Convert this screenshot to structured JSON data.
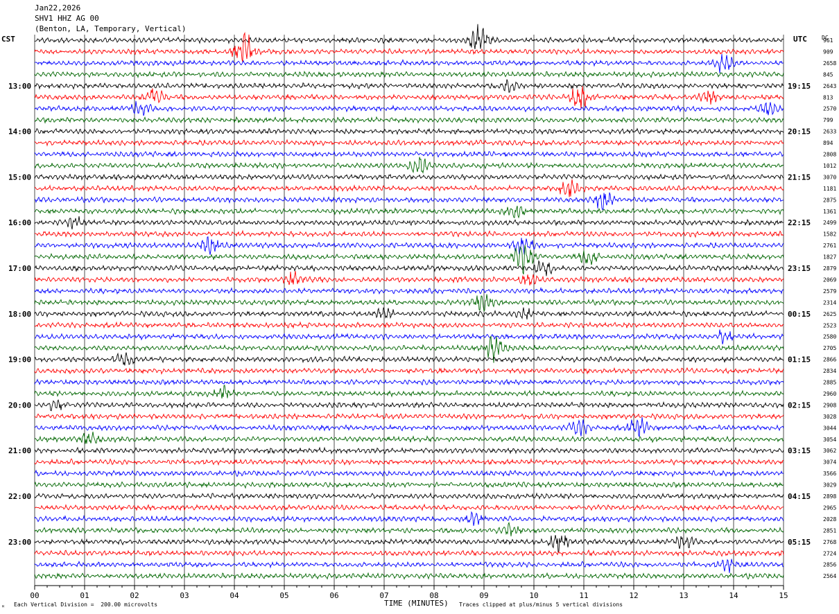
{
  "header": {
    "date": "Jan22,2026",
    "station": "SHV1 HHZ AG 00",
    "location": "(Benton, LA, Temporary, Vertical)"
  },
  "left_zone": "CST",
  "right_zone": "UTC",
  "dc_label": "DC",
  "footer": {
    "scale": "Each Vertical Division =  200.00 microvolts",
    "clip": "Traces clipped at plus/minus 5 vertical divisions",
    "corner_mark": "ᴹ"
  },
  "chart_data": {
    "type": "line",
    "title": "",
    "xlabel": "TIME (MINUTES)",
    "ylabel": "",
    "xlim": [
      0,
      15
    ],
    "x_ticks": [
      "00",
      "01",
      "02",
      "03",
      "04",
      "05",
      "06",
      "07",
      "08",
      "09",
      "10",
      "11",
      "12",
      "13",
      "14",
      "15"
    ],
    "trace_count": 48,
    "trace_minutes": 15,
    "trace_colors": [
      "#000000",
      "#ff0000",
      "#0000ff",
      "#006600"
    ],
    "left_hour_labels": [
      "13:00",
      "14:00",
      "15:00",
      "16:00",
      "17:00",
      "18:00",
      "19:00",
      "20:00",
      "21:00",
      "22:00",
      "23:00"
    ],
    "right_hour_labels": [
      "19:15",
      "20:15",
      "21:15",
      "22:15",
      "23:15",
      "00:15",
      "01:15",
      "02:15",
      "03:15",
      "04:15",
      "05:15"
    ],
    "dc_offsets": [
      "961",
      "909",
      "2658",
      "845",
      "2643",
      "813",
      "2570",
      "799",
      "2633",
      "894",
      "2808",
      "1012",
      "3070",
      "1181",
      "2875",
      "1361",
      "2499",
      "1582",
      "2761",
      "1827",
      "2879",
      "2069",
      "2579",
      "2314",
      "2625",
      "2523",
      "2580",
      "2705",
      "2866",
      "2834",
      "2885",
      "2960",
      "2908",
      "3028",
      "3044",
      "3054",
      "3062",
      "3074",
      "3566",
      "3029",
      "2898",
      "2965",
      "2028",
      "2851",
      "2768",
      "2724",
      "2856",
      "2564"
    ],
    "events": [
      {
        "trace": 0,
        "minute": 8.9,
        "amplitude": 2.2
      },
      {
        "trace": 1,
        "minute": 4.2,
        "amplitude": 3.0
      },
      {
        "trace": 2,
        "minute": 13.8,
        "amplitude": 1.6
      },
      {
        "trace": 4,
        "minute": 9.5,
        "amplitude": 0.8
      },
      {
        "trace": 5,
        "minute": 2.4,
        "amplitude": 1.4
      },
      {
        "trace": 5,
        "minute": 10.9,
        "amplitude": 2.0
      },
      {
        "trace": 5,
        "minute": 13.5,
        "amplitude": 1.0
      },
      {
        "trace": 6,
        "minute": 2.1,
        "amplitude": 1.0
      },
      {
        "trace": 6,
        "minute": 14.7,
        "amplitude": 0.9
      },
      {
        "trace": 11,
        "minute": 7.7,
        "amplitude": 1.3
      },
      {
        "trace": 13,
        "minute": 10.7,
        "amplitude": 1.4
      },
      {
        "trace": 14,
        "minute": 11.4,
        "amplitude": 1.5
      },
      {
        "trace": 15,
        "minute": 9.6,
        "amplitude": 1.0
      },
      {
        "trace": 16,
        "minute": 0.8,
        "amplitude": 0.8
      },
      {
        "trace": 18,
        "minute": 3.5,
        "amplitude": 1.2
      },
      {
        "trace": 18,
        "minute": 9.8,
        "amplitude": 1.6
      },
      {
        "trace": 19,
        "minute": 9.8,
        "amplitude": 2.5
      },
      {
        "trace": 19,
        "minute": 11.1,
        "amplitude": 1.2
      },
      {
        "trace": 20,
        "minute": 10.2,
        "amplitude": 1.0
      },
      {
        "trace": 21,
        "minute": 5.2,
        "amplitude": 1.0
      },
      {
        "trace": 21,
        "minute": 9.9,
        "amplitude": 0.9
      },
      {
        "trace": 23,
        "minute": 9.0,
        "amplitude": 1.4
      },
      {
        "trace": 24,
        "minute": 7.0,
        "amplitude": 0.9
      },
      {
        "trace": 24,
        "minute": 9.8,
        "amplitude": 0.8
      },
      {
        "trace": 26,
        "minute": 13.8,
        "amplitude": 1.0
      },
      {
        "trace": 27,
        "minute": 9.2,
        "amplitude": 2.2
      },
      {
        "trace": 28,
        "minute": 1.8,
        "amplitude": 1.4
      },
      {
        "trace": 31,
        "minute": 3.8,
        "amplitude": 1.0
      },
      {
        "trace": 32,
        "minute": 0.4,
        "amplitude": 1.0
      },
      {
        "trace": 34,
        "minute": 10.9,
        "amplitude": 1.2
      },
      {
        "trace": 34,
        "minute": 12.1,
        "amplitude": 1.6
      },
      {
        "trace": 35,
        "minute": 1.1,
        "amplitude": 0.9
      },
      {
        "trace": 42,
        "minute": 8.8,
        "amplitude": 0.8
      },
      {
        "trace": 43,
        "minute": 9.5,
        "amplitude": 0.8
      },
      {
        "trace": 44,
        "minute": 10.5,
        "amplitude": 1.4
      },
      {
        "trace": 44,
        "minute": 13.0,
        "amplitude": 1.0
      },
      {
        "trace": 46,
        "minute": 13.9,
        "amplitude": 1.0
      }
    ]
  }
}
